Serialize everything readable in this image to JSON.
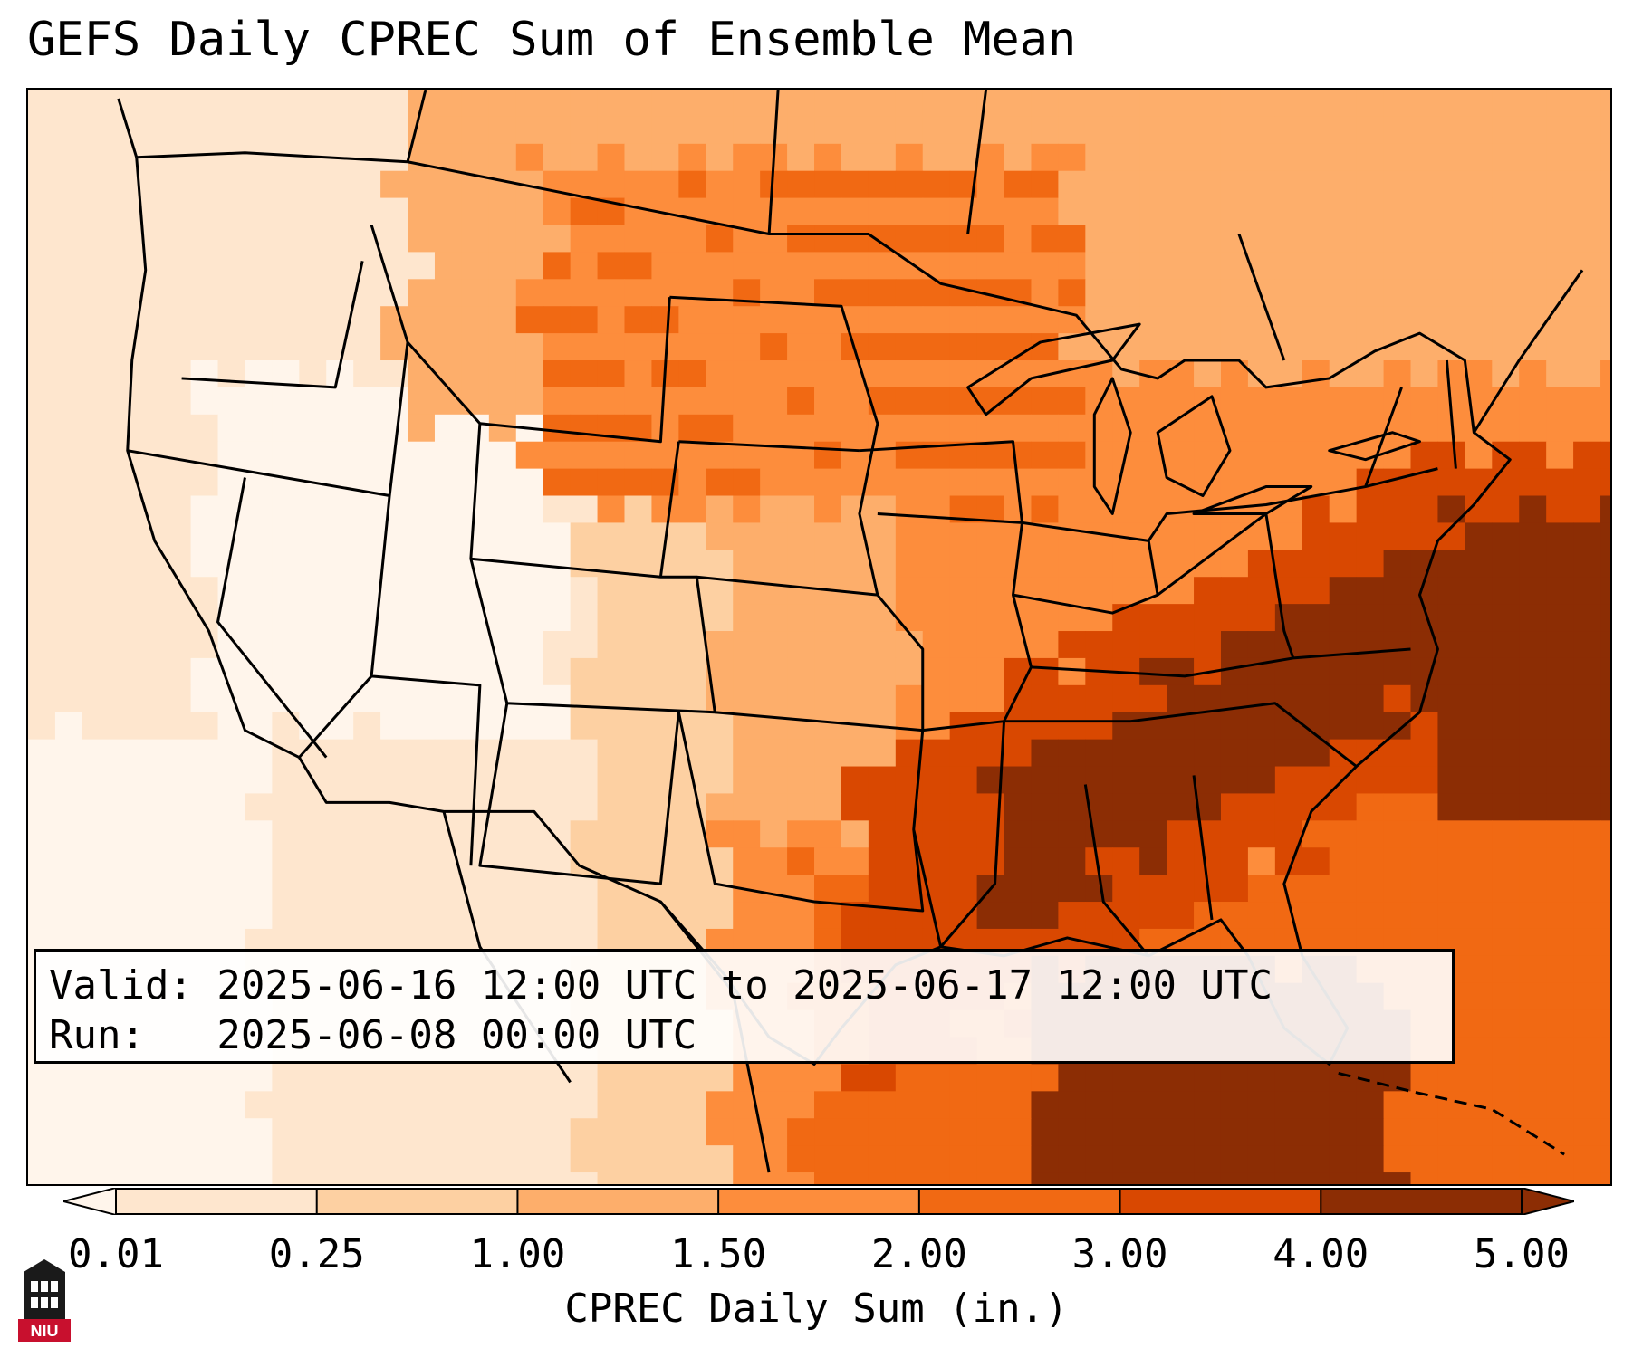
{
  "title": "GEFS Daily CPREC Sum of Ensemble Mean",
  "info": {
    "valid_line": "Valid: 2025-06-16 12:00 UTC to 2025-06-17 12:00 UTC",
    "run_line": "Run:   2025-06-08 00:00 UTC"
  },
  "colorbar": {
    "label": "CPREC Daily Sum (in.)",
    "ticks": [
      "0.01",
      "0.25",
      "1.00",
      "1.50",
      "2.00",
      "3.00",
      "4.00",
      "5.00"
    ],
    "colors": [
      "#fff5eb",
      "#fee6ce",
      "#fdd0a2",
      "#fdae6b",
      "#fd8d3c",
      "#f16913",
      "#d94801",
      "#8c2d04"
    ],
    "extend": "both"
  },
  "logo": {
    "text": "NIU",
    "colors": {
      "red": "#c8102e",
      "black": "#1a1a1a"
    }
  },
  "map": {
    "region": "Contiguous United States",
    "field_colors": {
      "lowest": "#fff5eb",
      "low": "#fee6ce",
      "light": "#fdd0a2",
      "moderate": "#fdae6b",
      "medium": "#fd8d3c",
      "high": "#f16913",
      "very_high": "#d94801",
      "extreme": "#8c2d04"
    }
  }
}
